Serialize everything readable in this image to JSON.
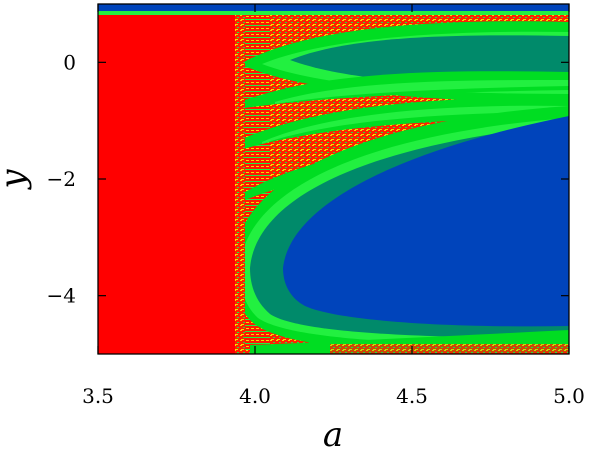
{
  "chart_data": {
    "type": "heatmap",
    "title": "",
    "xlabel": "a",
    "ylabel": "y",
    "xlim": [
      3.5,
      5.0
    ],
    "ylim": [
      -5.0,
      1.0
    ],
    "x_ticks": [
      3.5,
      4.0,
      4.5,
      5.0
    ],
    "x_tick_labels": [
      "3.5",
      "4.0",
      "4.5",
      "5.0"
    ],
    "y_ticks": [
      0,
      -2,
      -4
    ],
    "y_tick_labels": [
      "0",
      "−2",
      "−4"
    ],
    "grid": false,
    "legend": "none",
    "colors": {
      "red": "#ff0000",
      "yellow": "#f0e000",
      "green": "#00dd22",
      "light_green": "#22f040",
      "teal": "#008a6a",
      "blue": "#0044bb"
    },
    "regions": [
      {
        "color": "red",
        "a_range": [
          3.5,
          3.93
        ],
        "y_range": [
          -5.0,
          0.85
        ]
      },
      {
        "color": "blue",
        "center": [
          4.7,
          -2.9
        ],
        "note": "lower lobe"
      },
      {
        "color": "teal",
        "center": [
          4.6,
          0.2
        ],
        "note": "upper lobe"
      }
    ]
  }
}
